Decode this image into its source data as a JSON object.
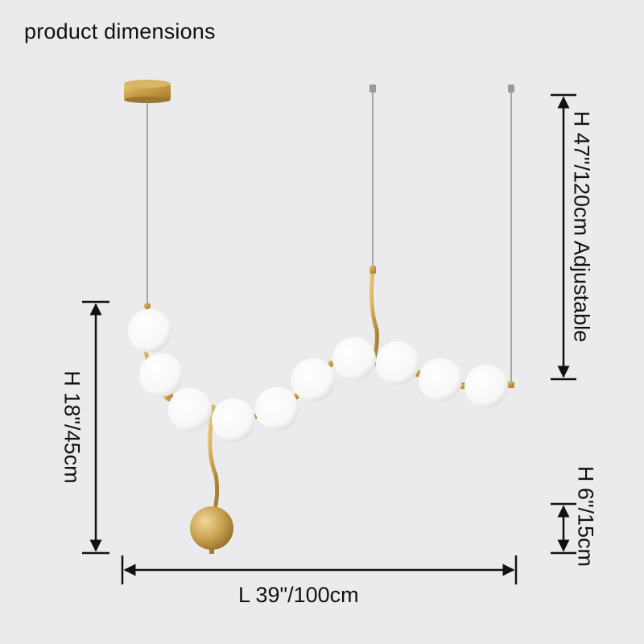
{
  "header": {
    "title": "product dimensions"
  },
  "dimensions": {
    "adjustable_height": "H 47\"/120cm Adjustable",
    "fixture_height": "H 18\"/45cm",
    "pendant_height": "H 6\"/15cm",
    "length": "L 39\"/100cm"
  },
  "colors": {
    "background": "#ebebed",
    "brass": "#c9a24c",
    "glass": "#ffffff",
    "arrow": "#111111"
  }
}
